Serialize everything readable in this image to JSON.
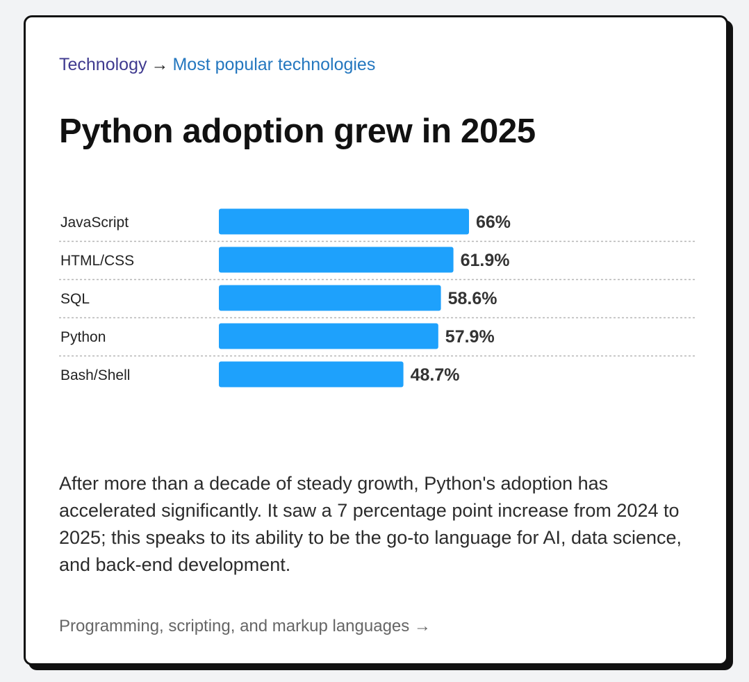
{
  "breadcrumb": {
    "root": "Technology",
    "separator": "→",
    "current": "Most popular technologies"
  },
  "title": "Python adoption grew in 2025",
  "chart_data": {
    "type": "bar",
    "orientation": "horizontal",
    "categories": [
      "JavaScript",
      "HTML/CSS",
      "SQL",
      "Python",
      "Bash/Shell"
    ],
    "values": [
      66,
      61.9,
      58.6,
      57.9,
      48.7
    ],
    "value_labels": [
      "66%",
      "61.9%",
      "58.6%",
      "57.9%",
      "48.7%"
    ],
    "bar_color": "#1ea1fc",
    "xlim": [
      0,
      100
    ],
    "grid": false
  },
  "paragraph": "After more than a decade of steady growth, Python's adoption has accelerated significantly. It saw a 7 percentage point increase from 2024 to 2025; this speaks to its ability to be the go-to language for AI, data science, and back-end development.",
  "footer_link": "Programming, scripting, and markup languages →"
}
